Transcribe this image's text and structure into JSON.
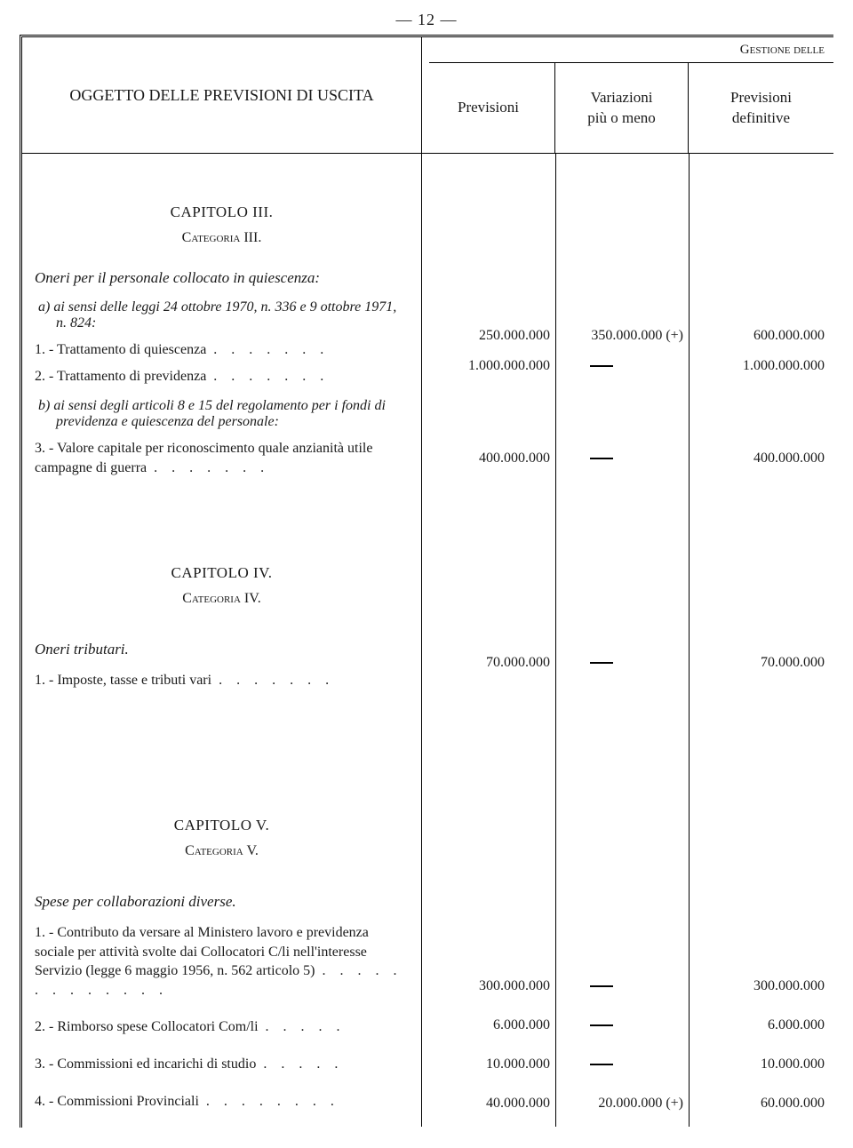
{
  "page_number": "— 12 —",
  "header": {
    "left_title": "OGGETTO DELLE PREVISIONI DI USCITA",
    "top_right": "Gestione delle",
    "col1": "Previsioni",
    "col2": "Variazioni\npiù o meno",
    "col3": "Previsioni\ndefinitive"
  },
  "capitolo3": {
    "title": "CAPITOLO III.",
    "categoria": "Categoria III.",
    "section_title": "Oneri per il personale collocato in quiescenza:",
    "sub_a": "a) ai sensi delle leggi 24 ottobre 1970, n. 336 e 9 ottobre 1971, n. 824:",
    "item1": {
      "label": "1. - Trattamento di quiescenza",
      "dots": ".     .     .     .     .     .     .",
      "c1": "250.000.000",
      "c2": "350.000.000 (+)",
      "c3": "600.000.000"
    },
    "item2": {
      "label": "2. - Trattamento di previdenza",
      "dots": ".     .     .     .     .     .     .",
      "c1": "1.000.000.000",
      "c2": "—",
      "c3": "1.000.000.000"
    },
    "sub_b": "b) ai sensi degli articoli 8 e 15 del regolamento per i fondi di previdenza e quiescenza del personale:",
    "item3": {
      "label": "3. - Valore capitale per riconoscimento quale anzianità utile campagne di guerra",
      "dots": ".     .     .     .     .     .     .",
      "c1": "400.000.000",
      "c2": "—",
      "c3": "400.000.000"
    }
  },
  "capitolo4": {
    "title": "CAPITOLO IV.",
    "categoria": "Categoria IV.",
    "section_title": "Oneri tributari.",
    "item1": {
      "label": "1. - Imposte, tasse e tributi vari",
      "dots": ".     .     .     .     .     .     .",
      "c1": "70.000.000",
      "c2": "—",
      "c3": "70.000.000"
    }
  },
  "capitolo5": {
    "title": "CAPITOLO V.",
    "categoria": "Categoria V.",
    "section_title": "Spese per collaborazioni diverse.",
    "item1": {
      "label": "1. - Contributo da versare al Ministero lavoro e previdenza sociale per attività svolte dai Collocatori C/li nell'interesse Servizio (legge 6 maggio 1956, n. 562 articolo 5)",
      "dots": ".    .    .    .    .    .    .    .    .    .    .    .    .",
      "c1": "300.000.000",
      "c2": "—",
      "c3": "300.000.000"
    },
    "item2": {
      "label": "2. - Rimborso spese Collocatori Com/li",
      "dots": ".     .     .     .     .",
      "c1": "6.000.000",
      "c2": "—",
      "c3": "6.000.000"
    },
    "item3": {
      "label": "3. - Commissioni ed incarichi di studio",
      "dots": ".     .     .     .     .",
      "c1": "10.000.000",
      "c2": "—",
      "c3": "10.000.000"
    },
    "item4": {
      "label": "4. - Commissioni Provinciali",
      "dots": ".     .     .     .     .     .     .     .",
      "c1": "40.000.000",
      "c2": "20.000.000 (+)",
      "c3": "60.000.000"
    }
  },
  "row_positions": {
    "r_c3_i1": 196,
    "r_c3_i2": 230,
    "r_c3_i3": 334,
    "r_c4_i1": 564,
    "r_c5_i1": 928,
    "r_c5_i2": 972,
    "r_c5_i3": 1016,
    "r_c5_i4": 1060
  },
  "colors": {
    "text": "#1a1a1a",
    "bg": "#ffffff",
    "rule": "#000000"
  },
  "fonts": {
    "body_pt": 16,
    "header_pt": 18
  }
}
